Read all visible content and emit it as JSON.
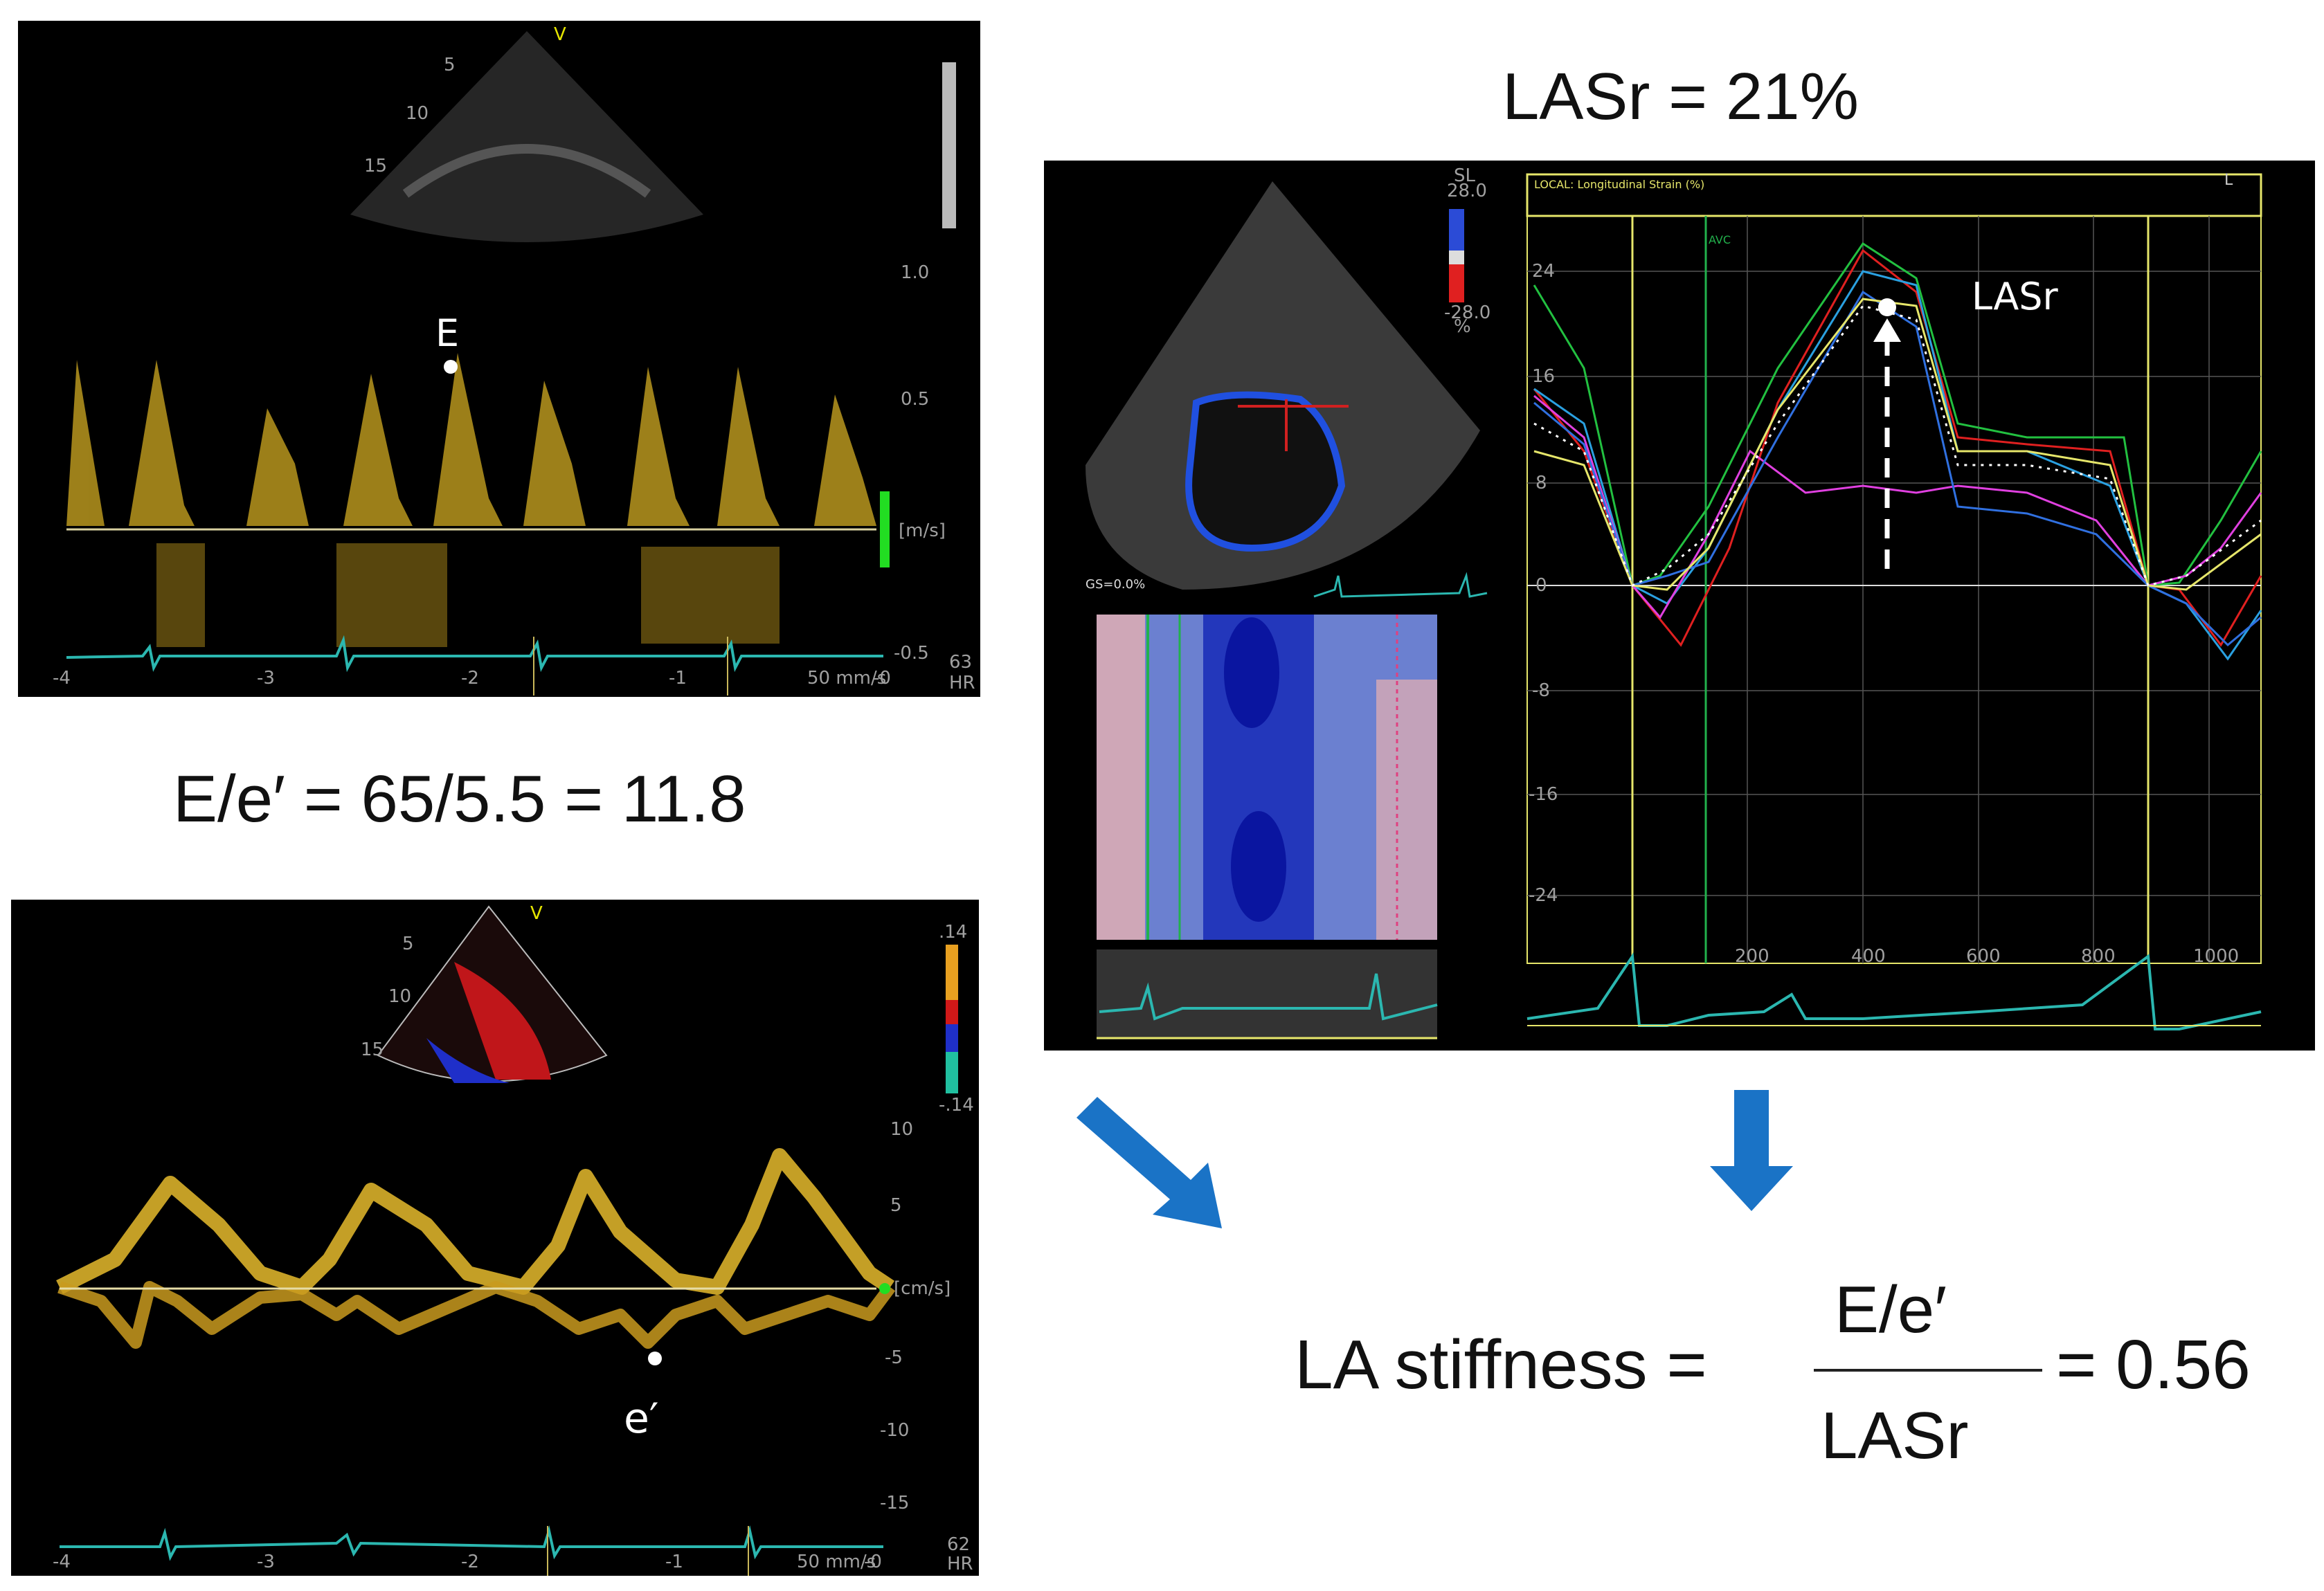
{
  "equations": {
    "e_over_eprime": "E/e′ = 65/5.5 = 11.8",
    "lasr_value": "LASr = 21%",
    "la_stiffness_lhs": "LA stiffness =",
    "la_stiffness_num": "E/e′",
    "la_stiffness_den": "LASr",
    "la_stiffness_rhs": "= 0.56"
  },
  "mitral_doppler": {
    "view_marker": "V",
    "depth_ticks": [
      "5",
      "10",
      "15"
    ],
    "velocity_ticks": [
      "1.0",
      "0.5",
      "[m/s]",
      "-0.5"
    ],
    "time_ticks": [
      "-4",
      "-3",
      "-2",
      "-1",
      "-0"
    ],
    "sweep": "50 mm/s",
    "hr_value": "63",
    "hr_label": "HR",
    "point_label": "E"
  },
  "tissue_doppler": {
    "view_marker": "V",
    "depth_ticks": [
      "5",
      "10",
      "15"
    ],
    "color_scale_top": ".14",
    "color_scale_bottom": "-.14",
    "velocity_ticks": [
      "10",
      "5",
      "[cm/s]",
      "-5",
      "-10",
      "-15"
    ],
    "time_ticks": [
      "-4",
      "-3",
      "-2",
      "-1",
      "-0"
    ],
    "sweep": "50 mm/s",
    "hr_value": "62",
    "hr_label": "HR",
    "point_label": "e′"
  },
  "strain_panel": {
    "colorbar_label": "SL",
    "colorbar_top": "28.0",
    "colorbar_bottom": "-28.0",
    "colorbar_unit": "%",
    "gs_label": "GS=0.0%",
    "graph_header": "LOCAL: Longitudinal Strain (%)",
    "graph_corner": "L",
    "avc_label": "AVC",
    "point_label": "LASr",
    "y_ticks": [
      "24",
      "16",
      "8",
      "0",
      "-8",
      "-16",
      "-24"
    ],
    "x_ticks": [
      "200",
      "400",
      "600",
      "800",
      "1000"
    ]
  },
  "colors": {
    "doppler_yellow": "#e8c23a",
    "ecg": "#2bb7b0",
    "arrow_blue": "#1a73c6",
    "strain_yellow": "#e6e66a",
    "avc_green": "#22b14c"
  }
}
